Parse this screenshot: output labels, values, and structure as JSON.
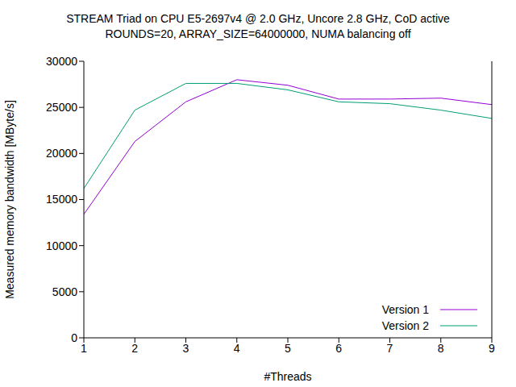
{
  "chart_data": {
    "type": "line",
    "title": "STREAM Triad on CPU E5-2697v4 @ 2.0 GHz, Uncore 2.8 GHz, CoD active",
    "subtitle": "ROUNDS=20, ARRAY_SIZE=64000000, NUMA balancing off",
    "x_label": "#Threads",
    "y_label": "Measured memory bandwidth [MByte/s]",
    "x": [
      1,
      2,
      3,
      4,
      5,
      6,
      7,
      8,
      9
    ],
    "series": [
      {
        "name": "Version 1",
        "color": "#9400d3",
        "values": [
          13400,
          21300,
          25600,
          28000,
          27400,
          25900,
          25900,
          26000,
          25300
        ]
      },
      {
        "name": "Version 2",
        "color": "#009e73",
        "values": [
          16200,
          24700,
          27600,
          27600,
          26900,
          25600,
          25400,
          24700,
          23800
        ]
      }
    ],
    "xlim": [
      1,
      9
    ],
    "xticks": [
      1,
      2,
      3,
      4,
      5,
      6,
      7,
      8,
      9
    ],
    "ylim": [
      0,
      30000
    ],
    "yticks": [
      0,
      5000,
      10000,
      15000,
      20000,
      25000,
      30000
    ],
    "grid": false,
    "legend": "lower right",
    "marker": "none",
    "line_style": "solid"
  }
}
